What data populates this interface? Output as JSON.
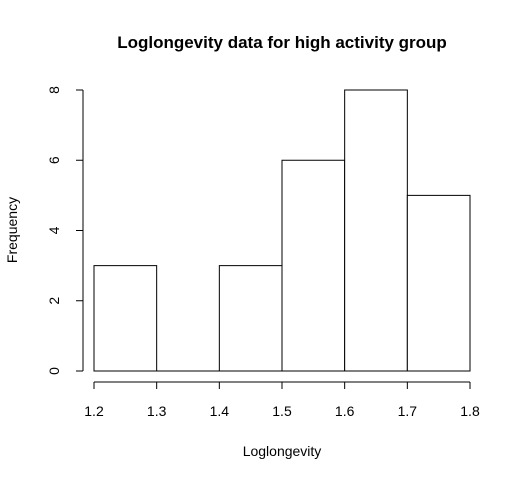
{
  "chart_data": {
    "type": "bar",
    "title": "Loglongevity data for high activity group",
    "xlabel": "Loglongevity",
    "ylabel": "Frequency",
    "bins": [
      {
        "start": 1.2,
        "end": 1.3,
        "count": 3
      },
      {
        "start": 1.3,
        "end": 1.4,
        "count": 0
      },
      {
        "start": 1.4,
        "end": 1.5,
        "count": 3
      },
      {
        "start": 1.5,
        "end": 1.6,
        "count": 6
      },
      {
        "start": 1.6,
        "end": 1.7,
        "count": 8
      },
      {
        "start": 1.7,
        "end": 1.8,
        "count": 5
      }
    ],
    "xlim": [
      1.2,
      1.8
    ],
    "ylim": [
      0,
      8
    ],
    "xticks": [
      1.2,
      1.3,
      1.4,
      1.5,
      1.6,
      1.7,
      1.8
    ],
    "xtick_labels": [
      "1.2",
      "1.3",
      "1.4",
      "1.5",
      "1.6",
      "1.7",
      "1.8"
    ],
    "yticks": [
      0,
      2,
      4,
      6,
      8
    ],
    "ytick_labels": [
      "0",
      "2",
      "4",
      "6",
      "8"
    ],
    "grid": false,
    "colors": {
      "bar_fill": "#ffffff",
      "bar_stroke": "#000000",
      "axis": "#000000",
      "background": "#ffffff"
    }
  }
}
